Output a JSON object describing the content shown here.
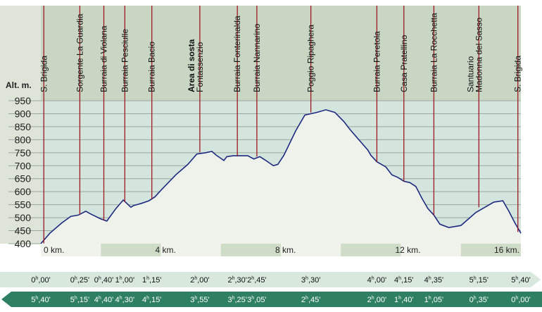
{
  "chart_data": {
    "type": "area",
    "ylabel": "Alt. m.",
    "y_ticks": [
      400,
      450,
      500,
      550,
      600,
      650,
      700,
      750,
      800,
      850,
      900,
      950
    ],
    "ylim": [
      400,
      950
    ],
    "xlim": [
      0,
      16
    ],
    "x_ticks": [
      {
        "km": 0,
        "label": "0 km."
      },
      {
        "km": 4,
        "label": "4 km."
      },
      {
        "km": 8,
        "label": "8 km."
      },
      {
        "km": 12,
        "label": "12 km."
      },
      {
        "km": 16,
        "label": "16 km."
      }
    ],
    "grid": true,
    "profile": {
      "x": [
        0,
        0.3,
        0.7,
        1.0,
        1.25,
        1.5,
        1.65,
        2.0,
        2.2,
        2.5,
        2.75,
        3.0,
        3.1,
        3.2,
        3.35,
        3.6,
        3.8,
        4.0,
        4.5,
        4.9,
        5.2,
        5.5,
        5.7,
        5.85,
        6.0,
        6.1,
        6.2,
        6.4,
        6.7,
        6.9,
        7.1,
        7.3,
        7.5,
        7.75,
        7.9,
        8.1,
        8.5,
        8.8,
        9.2,
        9.5,
        9.8,
        10.1,
        10.3,
        10.6,
        10.9,
        11.0,
        11.2,
        11.5,
        11.7,
        11.9,
        12.1,
        12.3,
        12.5,
        12.7,
        12.9,
        13.1,
        13.3,
        13.6,
        14.0,
        14.3,
        14.5,
        14.8,
        15.1,
        15.4,
        15.6,
        15.8,
        16.0
      ],
      "y": [
        400,
        440,
        480,
        505,
        510,
        525,
        515,
        495,
        487,
        535,
        568,
        540,
        547,
        550,
        555,
        565,
        580,
        605,
        665,
        705,
        745,
        750,
        755,
        740,
        728,
        720,
        735,
        738,
        738,
        738,
        726,
        735,
        720,
        700,
        705,
        740,
        835,
        895,
        905,
        915,
        905,
        870,
        840,
        800,
        760,
        740,
        715,
        695,
        665,
        655,
        640,
        635,
        620,
        575,
        535,
        510,
        475,
        462,
        470,
        500,
        520,
        540,
        560,
        565,
        525,
        480,
        440
      ]
    },
    "points": [
      {
        "label": "S. Brigida",
        "km": 0.1,
        "alt": 401,
        "bold": false
      },
      {
        "label": "Sorgente La Guardia",
        "km": 1.3,
        "alt": 512,
        "bold": false
      },
      {
        "label": "Burraia di Violana",
        "km": 2.1,
        "alt": 490,
        "bold": false
      },
      {
        "label": "Burraia Pesciulle",
        "km": 2.8,
        "alt": 560,
        "bold": false
      },
      {
        "label": "Burraia Bacio",
        "km": 3.7,
        "alt": 572,
        "bold": false
      },
      {
        "label": "Area di sosta",
        "sub": "Fontassenzio",
        "km": 5.3,
        "alt": 752,
        "bold": true
      },
      {
        "label": "Burraia Fonterinalda",
        "km": 6.55,
        "alt": 738,
        "bold": false
      },
      {
        "label": "Burraia Nannarino",
        "km": 7.2,
        "alt": 735,
        "bold": false
      },
      {
        "label": "Poggio Ripaghera",
        "km": 9.0,
        "alt": 905,
        "bold": false
      },
      {
        "label": "Burraia Peretola",
        "km": 11.2,
        "alt": 715,
        "bold": false
      },
      {
        "label": "Casa Pratellino",
        "km": 12.1,
        "alt": 640,
        "bold": false
      },
      {
        "label": "Burraia La Rocchetta",
        "km": 13.1,
        "alt": 510,
        "bold": false
      },
      {
        "label": "Santuario",
        "sub": "Madonna del Sasso",
        "km": 14.6,
        "alt": 540,
        "bold": false
      },
      {
        "label": "S. Brigida",
        "km": 15.9,
        "alt": 445,
        "bold": false
      }
    ],
    "times_outbound": [
      {
        "h": "0",
        "m": "00'",
        "km": 0
      },
      {
        "h": "0",
        "m": "25'",
        "km": 1.3
      },
      {
        "h": "0",
        "m": "40'",
        "km": 2.1
      },
      {
        "h": "1",
        "m": "00'",
        "km": 2.8
      },
      {
        "h": "1",
        "m": "15'",
        "km": 3.7
      },
      {
        "h": "2",
        "m": "00'",
        "km": 5.3
      },
      {
        "h": "2",
        "m": "30'",
        "km": 6.55
      },
      {
        "h": "2",
        "m": "45'",
        "km": 7.2
      },
      {
        "h": "3",
        "m": "30'",
        "km": 9.0
      },
      {
        "h": "4",
        "m": "00'",
        "km": 11.2
      },
      {
        "h": "4",
        "m": "15'",
        "km": 12.1
      },
      {
        "h": "4",
        "m": "35'",
        "km": 13.1
      },
      {
        "h": "5",
        "m": "15'",
        "km": 14.6
      },
      {
        "h": "5",
        "m": "40'",
        "km": 16.0
      }
    ],
    "times_return": [
      {
        "h": "5",
        "m": "40'",
        "km": 0
      },
      {
        "h": "5",
        "m": "15'",
        "km": 1.3
      },
      {
        "h": "4",
        "m": "40'",
        "km": 2.1
      },
      {
        "h": "4",
        "m": "30'",
        "km": 2.8
      },
      {
        "h": "4",
        "m": "15'",
        "km": 3.7
      },
      {
        "h": "3",
        "m": "55'",
        "km": 5.3
      },
      {
        "h": "3",
        "m": "25'",
        "km": 6.55
      },
      {
        "h": "3",
        "m": "05'",
        "km": 7.2
      },
      {
        "h": "2",
        "m": "45'",
        "km": 9.0
      },
      {
        "h": "2",
        "m": "00'",
        "km": 11.2
      },
      {
        "h": "1",
        "m": "40'",
        "km": 12.1
      },
      {
        "h": "1",
        "m": "05'",
        "km": 13.1
      },
      {
        "h": "0",
        "m": "35'",
        "km": 14.6
      },
      {
        "h": "0",
        "m": "00'",
        "km": 16.0
      }
    ],
    "colors": {
      "header_band": "#c9d6c4",
      "axis_panel": "#dfe4d8",
      "plot_fill": "#d3e5dd",
      "under_profile": "#eef2ea",
      "profile_line": "#1e2a80",
      "poi_line": "#a01822",
      "km_band_light": "#f0f2ec",
      "km_band_dark": "#cfdcc8",
      "outbound_arrow": "#d8e8dc",
      "return_arrow": "#2f7f63"
    }
  }
}
